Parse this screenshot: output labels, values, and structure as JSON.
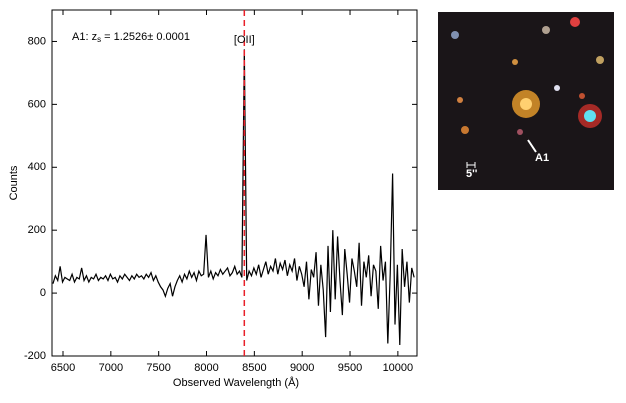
{
  "chart_data": {
    "type": "line",
    "xlabel": "Observed Wavelength (Å)",
    "ylabel": "Counts",
    "annotation": {
      "parts": [
        "A1: z",
        "s",
        " = 1.2526± 0.0001"
      ]
    },
    "reference_line": {
      "x": 8395,
      "label": "[OII]",
      "color": "#e8202a"
    },
    "x": [
      6395,
      6420,
      6445,
      6470,
      6495,
      6520,
      6545,
      6570,
      6595,
      6620,
      6645,
      6670,
      6695,
      6720,
      6745,
      6770,
      6795,
      6820,
      6845,
      6870,
      6895,
      6920,
      6945,
      6970,
      6995,
      7020,
      7045,
      7070,
      7095,
      7120,
      7145,
      7170,
      7195,
      7220,
      7245,
      7270,
      7295,
      7320,
      7345,
      7370,
      7395,
      7420,
      7445,
      7470,
      7495,
      7520,
      7545,
      7570,
      7595,
      7620,
      7645,
      7670,
      7695,
      7720,
      7745,
      7770,
      7795,
      7820,
      7845,
      7870,
      7895,
      7920,
      7945,
      7970,
      7995,
      8020,
      8045,
      8070,
      8095,
      8120,
      8145,
      8170,
      8195,
      8220,
      8245,
      8270,
      8295,
      8320,
      8345,
      8370,
      8395,
      8420,
      8445,
      8470,
      8495,
      8520,
      8545,
      8570,
      8595,
      8620,
      8645,
      8670,
      8695,
      8720,
      8745,
      8770,
      8795,
      8820,
      8845,
      8870,
      8895,
      8920,
      8945,
      8970,
      8995,
      9020,
      9045,
      9070,
      9095,
      9120,
      9145,
      9170,
      9195,
      9220,
      9245,
      9270,
      9295,
      9320,
      9345,
      9370,
      9395,
      9420,
      9445,
      9470,
      9495,
      9520,
      9545,
      9570,
      9595,
      9620,
      9645,
      9670,
      9695,
      9720,
      9745,
      9770,
      9795,
      9820,
      9845,
      9870,
      9895,
      9920,
      9945,
      9970,
      9995,
      10020,
      10045,
      10070,
      10095,
      10120,
      10145,
      10170
    ],
    "series": [
      {
        "color": "#000000",
        "values": [
          30,
          55,
          40,
          85,
          35,
          50,
          45,
          40,
          60,
          35,
          50,
          45,
          80,
          40,
          55,
          35,
          50,
          45,
          60,
          40,
          50,
          45,
          55,
          40,
          60,
          45,
          50,
          35,
          55,
          45,
          60,
          50,
          40,
          55,
          45,
          60,
          50,
          55,
          45,
          60,
          50,
          65,
          40,
          55,
          35,
          20,
          10,
          -10,
          15,
          30,
          -10,
          20,
          40,
          55,
          35,
          60,
          45,
          70,
          50,
          65,
          40,
          70,
          55,
          60,
          185,
          50,
          70,
          45,
          65,
          55,
          75,
          60,
          70,
          80,
          55,
          65,
          85,
          60,
          70,
          50,
          775,
          40,
          70,
          55,
          80,
          60,
          90,
          50,
          75,
          100,
          60,
          85,
          70,
          110,
          60,
          95,
          75,
          105,
          55,
          90,
          70,
          110,
          40,
          85,
          60,
          20,
          100,
          -20,
          75,
          50,
          130,
          -40,
          90,
          10,
          -140,
          150,
          -60,
          200,
          -20,
          180,
          40,
          -70,
          140,
          60,
          -30,
          110,
          70,
          20,
          160,
          -40,
          100,
          50,
          120,
          -10,
          90,
          70,
          -50,
          150,
          40,
          100,
          -160,
          60,
          380,
          -100,
          90,
          -165,
          140,
          20,
          100,
          -30,
          80,
          50
        ]
      }
    ],
    "xlim": [
      6385,
      10200
    ],
    "xticks": [
      6500,
      7000,
      7500,
      8000,
      8500,
      9000,
      9500,
      10000
    ],
    "ylim": [
      -200,
      900
    ],
    "yticks": [
      -200,
      0,
      200,
      400,
      600,
      800
    ]
  },
  "image": {
    "labels": [
      "A1",
      "5''"
    ]
  }
}
